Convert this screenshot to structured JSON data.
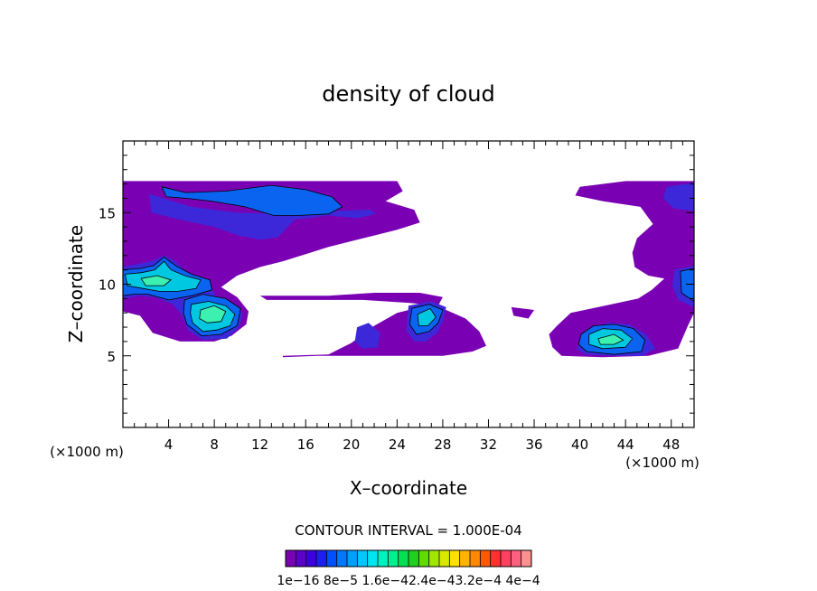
{
  "chart_data": {
    "type": "heatmap",
    "title": "density of cloud",
    "xlabel": "X–coordinate",
    "ylabel": "Z–coordinate",
    "x_unit_left": "(×1000 m)",
    "x_unit_right": "(×1000 m)",
    "xlim": [
      0,
      50
    ],
    "ylim": [
      0,
      20
    ],
    "x_ticks": [
      {
        "value": 4,
        "label": "4"
      },
      {
        "value": 8,
        "label": "8"
      },
      {
        "value": 12,
        "label": "12"
      },
      {
        "value": 16,
        "label": "16"
      },
      {
        "value": 20,
        "label": "20"
      },
      {
        "value": 24,
        "label": "24"
      },
      {
        "value": 28,
        "label": "28"
      },
      {
        "value": 32,
        "label": "32"
      },
      {
        "value": 36,
        "label": "36"
      },
      {
        "value": 40,
        "label": "40"
      },
      {
        "value": 44,
        "label": "44"
      },
      {
        "value": 48,
        "label": "48"
      }
    ],
    "y_ticks": [
      {
        "value": 5,
        "label": "5"
      },
      {
        "value": 10,
        "label": "10"
      },
      {
        "value": 15,
        "label": "15"
      }
    ],
    "contour_interval_label": "CONTOUR INTERVAL = 1.000E-04",
    "colorbar": {
      "colors": [
        "#7a00b4",
        "#5c00c8",
        "#3c00dc",
        "#1e1ef0",
        "#0050ff",
        "#0078ff",
        "#00a0ff",
        "#00c8ff",
        "#00e6f0",
        "#00f0c0",
        "#00f090",
        "#00e050",
        "#20d020",
        "#60dc00",
        "#a0e600",
        "#d8e800",
        "#ffe000",
        "#ffb400",
        "#ff8800",
        "#ff5a00",
        "#ff3030",
        "#ff4060",
        "#ff6080",
        "#ff9090"
      ],
      "labels": [
        "1e−16",
        "8e−5",
        "1.6e−4",
        "2.4e−4",
        "3.2e−4",
        "4e−4"
      ],
      "label_text": "1e−16 8e−5 1.6e−42.4e−43.2e−4 4e−4"
    },
    "colors": {
      "low": "#7a00b4",
      "mid_low": "#3c28d8",
      "mid": "#0a64f0",
      "high": "#00c8e0",
      "highest": "#3cf0b0"
    },
    "regions": [
      {
        "level": 1,
        "points": [
          [
            0,
            17.2
          ],
          [
            24,
            17.2
          ],
          [
            24.5,
            16.5
          ],
          [
            23,
            15.8
          ],
          [
            25.5,
            15.2
          ],
          [
            26,
            14.3
          ],
          [
            24,
            13.8
          ],
          [
            22,
            13.4
          ],
          [
            20,
            13
          ],
          [
            18,
            12.6
          ],
          [
            16,
            12.1
          ],
          [
            14,
            11.6
          ],
          [
            12,
            11.2
          ],
          [
            10,
            10.6
          ],
          [
            8.6,
            9.8
          ],
          [
            10,
            9.1
          ],
          [
            11,
            8.1
          ],
          [
            10.8,
            7.2
          ],
          [
            9.5,
            6.4
          ],
          [
            8,
            6
          ],
          [
            5,
            6
          ],
          [
            2.6,
            6.6
          ],
          [
            1.5,
            7.8
          ],
          [
            0,
            8.1
          ]
        ]
      },
      {
        "level": 1,
        "points": [
          [
            14,
            5
          ],
          [
            18,
            5.1
          ],
          [
            20,
            5.9
          ],
          [
            22,
            7.1
          ],
          [
            24,
            8
          ],
          [
            26,
            8.4
          ],
          [
            28,
            8.3
          ],
          [
            30,
            7.6
          ],
          [
            31.2,
            6.7
          ],
          [
            31.8,
            5.7
          ],
          [
            30.6,
            5.3
          ],
          [
            28,
            5
          ],
          [
            24.5,
            5
          ],
          [
            21,
            5
          ],
          [
            17,
            5
          ],
          [
            14,
            4.9
          ]
        ]
      },
      {
        "level": 1,
        "points": [
          [
            12,
            9.2
          ],
          [
            18,
            9.2
          ],
          [
            22,
            9.4
          ],
          [
            26,
            9.4
          ],
          [
            28,
            9.1
          ],
          [
            27.6,
            8.5
          ],
          [
            25,
            8.7
          ],
          [
            21,
            8.9
          ],
          [
            17,
            8.9
          ],
          [
            12.6,
            8.9
          ]
        ]
      },
      {
        "level": 1,
        "points": [
          [
            38.4,
            5
          ],
          [
            42,
            4.9
          ],
          [
            46,
            5
          ],
          [
            48.6,
            5.5
          ],
          [
            49.4,
            7
          ],
          [
            50,
            8
          ],
          [
            50,
            17.2
          ],
          [
            47,
            17.2
          ],
          [
            44,
            17.2
          ],
          [
            40,
            16.8
          ],
          [
            39.6,
            16.2
          ],
          [
            42,
            15.8
          ],
          [
            45.3,
            15.4
          ],
          [
            46.4,
            14.2
          ],
          [
            45,
            13.2
          ],
          [
            44.6,
            12.2
          ],
          [
            44.8,
            11.2
          ],
          [
            46,
            10.6
          ],
          [
            47.4,
            10.4
          ],
          [
            46.3,
            9.6
          ],
          [
            45.1,
            9
          ],
          [
            42.2,
            8.5
          ],
          [
            39.2,
            8
          ],
          [
            38,
            7.1
          ],
          [
            37.3,
            6.5
          ],
          [
            37.6,
            5.6
          ]
        ]
      },
      {
        "level": 1,
        "points": [
          [
            34,
            8.4
          ],
          [
            36,
            8.2
          ],
          [
            35.5,
            7.6
          ],
          [
            34.2,
            7.8
          ]
        ]
      },
      {
        "level": 2,
        "points": [
          [
            2.3,
            16.3
          ],
          [
            6,
            15.4
          ],
          [
            10,
            15
          ],
          [
            14,
            14.9
          ],
          [
            18,
            15.1
          ],
          [
            21.7,
            15.2
          ],
          [
            22.1,
            14.9
          ],
          [
            20.5,
            14.6
          ],
          [
            18,
            14.8
          ],
          [
            15,
            14.5
          ],
          [
            13.6,
            13.3
          ],
          [
            12.1,
            13.1
          ],
          [
            10.1,
            13.4
          ],
          [
            8,
            14
          ],
          [
            4.5,
            14.6
          ],
          [
            2.5,
            15
          ]
        ]
      },
      {
        "level": 2,
        "points": [
          [
            0,
            11.2
          ],
          [
            2.5,
            11.6
          ],
          [
            3.6,
            12
          ],
          [
            4.6,
            11.6
          ],
          [
            5.6,
            10.8
          ],
          [
            7.5,
            10.2
          ],
          [
            8.1,
            9.2
          ],
          [
            9.5,
            8.6
          ],
          [
            10.5,
            8
          ],
          [
            10.2,
            7
          ],
          [
            9.1,
            6.2
          ],
          [
            7,
            6.1
          ],
          [
            5.7,
            6.8
          ],
          [
            5.2,
            7.8
          ],
          [
            4.4,
            8.6
          ],
          [
            2.8,
            9.1
          ],
          [
            1.4,
            9.2
          ],
          [
            0,
            9
          ]
        ]
      },
      {
        "level": 2,
        "points": [
          [
            25,
            8.5
          ],
          [
            27,
            8.8
          ],
          [
            28.3,
            8.4
          ],
          [
            28,
            7.4
          ],
          [
            27.5,
            6.6
          ],
          [
            26.5,
            6
          ],
          [
            25.5,
            6
          ],
          [
            24.8,
            6.8
          ]
        ]
      },
      {
        "level": 2,
        "points": [
          [
            20.5,
            7
          ],
          [
            21.5,
            7.3
          ],
          [
            22.5,
            6.6
          ],
          [
            22.3,
            5.6
          ],
          [
            21,
            5.5
          ],
          [
            20.3,
            6
          ]
        ]
      },
      {
        "level": 2,
        "points": [
          [
            39.7,
            5.5
          ],
          [
            41,
            6.9
          ],
          [
            42.5,
            7.3
          ],
          [
            44.3,
            7.2
          ],
          [
            45.8,
            6.5
          ],
          [
            46.6,
            5.5
          ],
          [
            45.5,
            5
          ],
          [
            43,
            5
          ],
          [
            40.5,
            5.1
          ]
        ]
      },
      {
        "level": 2,
        "points": [
          [
            48.3,
            11
          ],
          [
            50,
            11.3
          ],
          [
            50,
            8.4
          ],
          [
            48.6,
            8.9
          ],
          [
            48.1,
            9.9
          ]
        ]
      },
      {
        "level": 2,
        "points": [
          [
            47.6,
            16.8
          ],
          [
            50,
            17.1
          ],
          [
            50,
            15.1
          ],
          [
            48.2,
            15.3
          ],
          [
            47.3,
            16
          ]
        ]
      },
      {
        "level": 3,
        "points": [
          [
            3.4,
            16.8
          ],
          [
            5.5,
            16.4
          ],
          [
            9,
            16.5
          ],
          [
            13,
            16.9
          ],
          [
            16,
            16.6
          ],
          [
            18.3,
            16.1
          ],
          [
            19.2,
            15.4
          ],
          [
            18,
            14.9
          ],
          [
            15.5,
            14.8
          ],
          [
            13.2,
            14.8
          ],
          [
            10.7,
            15.4
          ],
          [
            7.8,
            15.8
          ],
          [
            5.5,
            16
          ],
          [
            3.8,
            16.1
          ]
        ]
      },
      {
        "level": 3,
        "points": [
          [
            0,
            11
          ],
          [
            1.5,
            11.1
          ],
          [
            2.7,
            11.3
          ],
          [
            3.6,
            11.9
          ],
          [
            4.6,
            11.3
          ],
          [
            6,
            10.7
          ],
          [
            7.6,
            10.3
          ],
          [
            7.8,
            9.6
          ],
          [
            6,
            9.2
          ],
          [
            4,
            8.9
          ],
          [
            2.2,
            9.3
          ],
          [
            0.9,
            9.3
          ],
          [
            0,
            9.2
          ]
        ]
      },
      {
        "level": 3,
        "points": [
          [
            5.4,
            8.9
          ],
          [
            7,
            9.3
          ],
          [
            9,
            9
          ],
          [
            10.3,
            8.3
          ],
          [
            10,
            7.1
          ],
          [
            8.6,
            6.5
          ],
          [
            6.9,
            6.4
          ],
          [
            5.6,
            7.2
          ],
          [
            5.3,
            8
          ]
        ]
      },
      {
        "level": 3,
        "points": [
          [
            25.3,
            8.3
          ],
          [
            26.8,
            8.6
          ],
          [
            28,
            8.2
          ],
          [
            27.6,
            7.3
          ],
          [
            26.8,
            6.7
          ],
          [
            25.7,
            6.5
          ],
          [
            25.1,
            7.2
          ]
        ]
      },
      {
        "level": 3,
        "points": [
          [
            40.1,
            6.5
          ],
          [
            41.2,
            7.1
          ],
          [
            43,
            7.2
          ],
          [
            44.7,
            6.9
          ],
          [
            45.7,
            6.1
          ],
          [
            45.4,
            5.3
          ],
          [
            43,
            5.1
          ],
          [
            40.6,
            5.3
          ],
          [
            39.9,
            5.8
          ]
        ]
      },
      {
        "level": 3,
        "points": [
          [
            48.8,
            10.9
          ],
          [
            50,
            11.1
          ],
          [
            50,
            8.8
          ],
          [
            48.9,
            9.4
          ]
        ]
      },
      {
        "level": 4,
        "points": [
          [
            0.2,
            10.7
          ],
          [
            1.6,
            10.8
          ],
          [
            2.8,
            11
          ],
          [
            3.6,
            11.6
          ],
          [
            4.2,
            11
          ],
          [
            5.4,
            10.6
          ],
          [
            6.8,
            10.3
          ],
          [
            6.4,
            9.7
          ],
          [
            4.8,
            9.5
          ],
          [
            3.2,
            9.5
          ],
          [
            1.8,
            9.7
          ],
          [
            0.4,
            9.9
          ]
        ]
      },
      {
        "level": 4,
        "points": [
          [
            6,
            8.6
          ],
          [
            7.5,
            8.8
          ],
          [
            9,
            8.5
          ],
          [
            9.8,
            7.9
          ],
          [
            9.4,
            7.1
          ],
          [
            8.2,
            6.8
          ],
          [
            7,
            6.7
          ],
          [
            6.1,
            7.3
          ],
          [
            5.9,
            8
          ]
        ]
      },
      {
        "level": 4,
        "points": [
          [
            25.8,
            7.9
          ],
          [
            26.9,
            8.3
          ],
          [
            27.4,
            7.7
          ],
          [
            26.7,
            7.1
          ],
          [
            25.9,
            7.1
          ]
        ]
      },
      {
        "level": 4,
        "points": [
          [
            40.8,
            6.5
          ],
          [
            42,
            6.9
          ],
          [
            43.6,
            6.8
          ],
          [
            44.6,
            6.2
          ],
          [
            44,
            5.6
          ],
          [
            42,
            5.5
          ],
          [
            40.8,
            5.8
          ]
        ]
      },
      {
        "level": 5,
        "points": [
          [
            6.8,
            8.2
          ],
          [
            8,
            8.5
          ],
          [
            9,
            8.1
          ],
          [
            8.6,
            7.4
          ],
          [
            7.4,
            7.3
          ],
          [
            6.7,
            7.6
          ]
        ]
      },
      {
        "level": 5,
        "points": [
          [
            1.6,
            10.4
          ],
          [
            3,
            10.6
          ],
          [
            4.2,
            10.3
          ],
          [
            3.6,
            9.9
          ],
          [
            2,
            9.9
          ]
        ]
      },
      {
        "level": 5,
        "points": [
          [
            41.6,
            6.2
          ],
          [
            43,
            6.5
          ],
          [
            43.8,
            6.1
          ],
          [
            43,
            5.8
          ],
          [
            41.8,
            5.8
          ]
        ]
      }
    ]
  }
}
